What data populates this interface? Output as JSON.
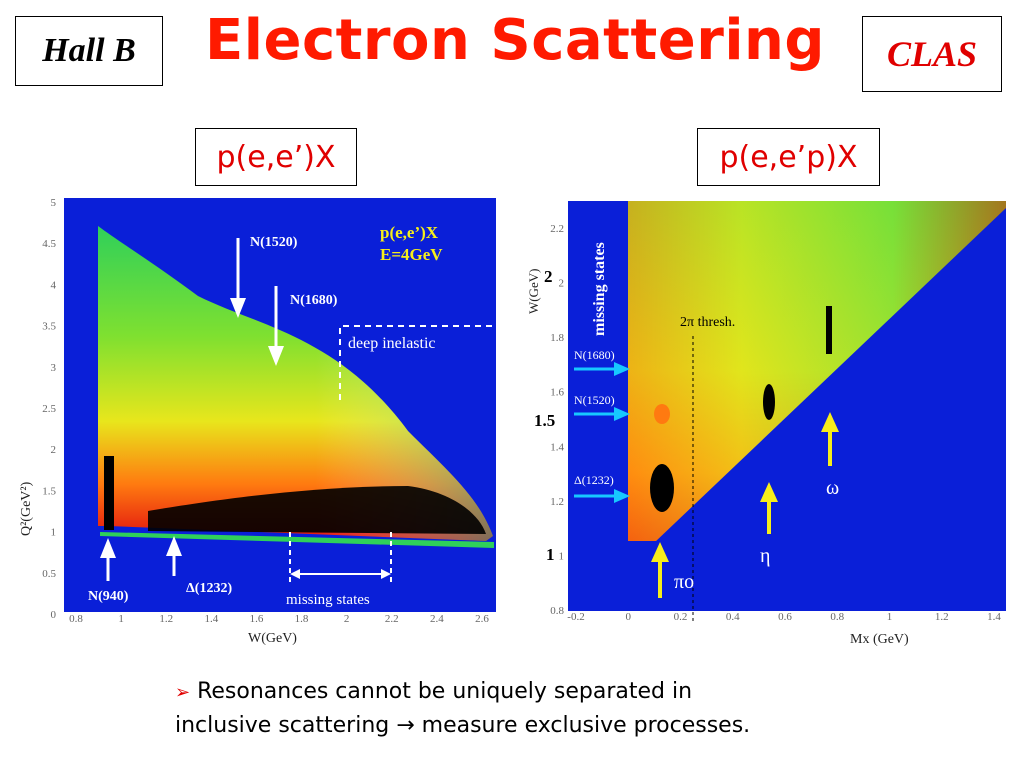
{
  "header": {
    "left_box": "Hall B",
    "title": "Electron Scattering",
    "right_box": "CLAS"
  },
  "left_plot": {
    "reaction_label": "p(e,e’)X",
    "inset_label_line1": "p(e,e’)X",
    "inset_label_line2": "E=4GeV",
    "y_axis_label": "Q²(GeV²)",
    "x_axis_label": "W(GeV)",
    "y_ticks": [
      "5",
      "4.5",
      "4",
      "3.5",
      "3",
      "2.5",
      "2",
      "1.5",
      "1",
      "0.5",
      "0"
    ],
    "x_ticks": [
      "0.8",
      "1",
      "1.2",
      "1.4",
      "1.6",
      "1.8",
      "2",
      "2.2",
      "2.4",
      "2.6"
    ],
    "annotations": {
      "n1520": "N(1520)",
      "n1680": "N(1680)",
      "n940": "N(940)",
      "delta1232": "Δ(1232)",
      "deep_inelastic": "deep inelastic",
      "missing_states": "missing states"
    }
  },
  "right_plot": {
    "reaction_label": "p(e,e’p)X",
    "y_axis_label": "W(GeV)",
    "x_axis_label": "Mx (GeV)",
    "y_ticks": [
      "2.2",
      "2",
      "1.8",
      "1.6",
      "1.4",
      "1.2",
      "1",
      "0.8"
    ],
    "x_ticks": [
      "-0.2",
      "0",
      "0.2",
      "0.4",
      "0.6",
      "0.8",
      "1",
      "1.2",
      "1.4"
    ],
    "overlay_y_values": [
      "2",
      "1.5",
      "1"
    ],
    "annotations": {
      "missing_states": "missing states",
      "two_pi_thresh": "2π thresh.",
      "n1680": "N(1680)",
      "n1520": "N(1520)",
      "delta1232": "Δ(1232)",
      "pi0": "πo",
      "eta": "η",
      "omega": "ω"
    }
  },
  "bullet": {
    "marker": "➢",
    "line1": "Resonances cannot be uniquely separated in",
    "line2": "inclusive scattering → measure exclusive processes."
  },
  "colors": {
    "title_red": "#ff1a00",
    "plot_blue": "#0a1fd8",
    "arrow_cyan": "#17c8ff",
    "arrow_yellow": "#f6ee1a"
  }
}
